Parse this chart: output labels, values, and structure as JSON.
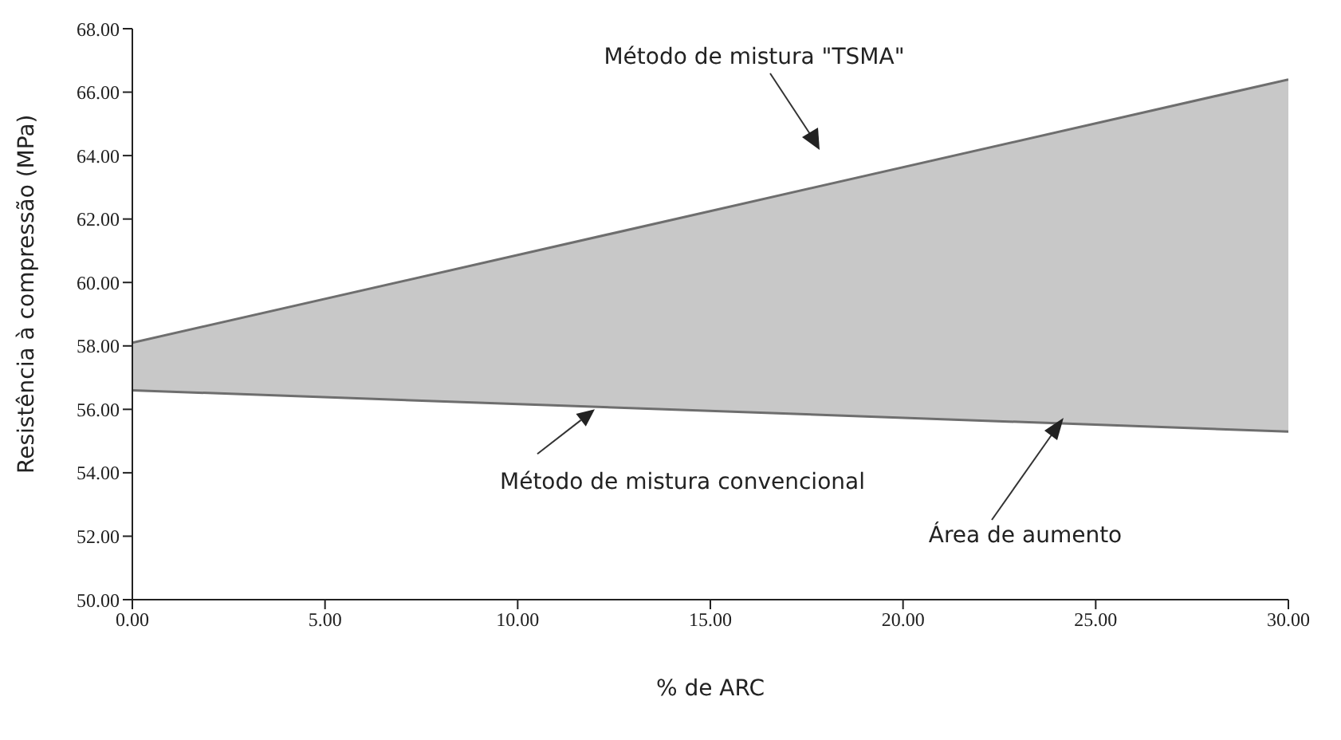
{
  "chart_data": {
    "type": "line",
    "xlabel": "% de ARC",
    "ylabel": "Resistência à compressão (MPa)",
    "x": [
      0,
      30
    ],
    "series": [
      {
        "type": "line",
        "color": "#6e6e6e",
        "values": [
          58.1,
          66.4
        ],
        "lower": [
          56.6,
          55.3
        ],
        "upper": [
          58.1,
          66.4
        ]
      },
      {
        "color": "#6e6e6e",
        "values": [
          56.6,
          55.3
        ]
      }
    ],
    "xlim": [
      0,
      30
    ],
    "ylim": [
      50,
      68
    ],
    "xticks": [
      {
        "value": 0,
        "label": "0.00"
      },
      {
        "value": 5,
        "label": "5.00"
      },
      {
        "value": 10,
        "label": "10.00"
      },
      {
        "value": 15,
        "label": "15.00"
      },
      {
        "value": 20,
        "label": "20.00"
      },
      {
        "value": 25,
        "label": "25.00"
      },
      {
        "value": 30,
        "label": "30.00"
      }
    ],
    "yticks": [
      {
        "value": 50,
        "label": "50.00"
      },
      {
        "value": 52,
        "label": "52.00"
      },
      {
        "value": 54,
        "label": "54.00"
      },
      {
        "value": 56,
        "label": "56.00"
      },
      {
        "value": 58,
        "label": "58.00"
      },
      {
        "value": 60,
        "label": "60.00"
      },
      {
        "value": 62,
        "label": "62.00"
      },
      {
        "value": 64,
        "label": "64.00"
      },
      {
        "value": 66,
        "label": "66.00"
      },
      {
        "value": 68,
        "label": "68.00"
      }
    ],
    "annotations": [
      "Método de mistura \"TSMA\"",
      {
        "text": "Método de mistura convencional",
        "x": 12,
        "y": 56.0
      },
      "Área de aumento"
    ]
  }
}
